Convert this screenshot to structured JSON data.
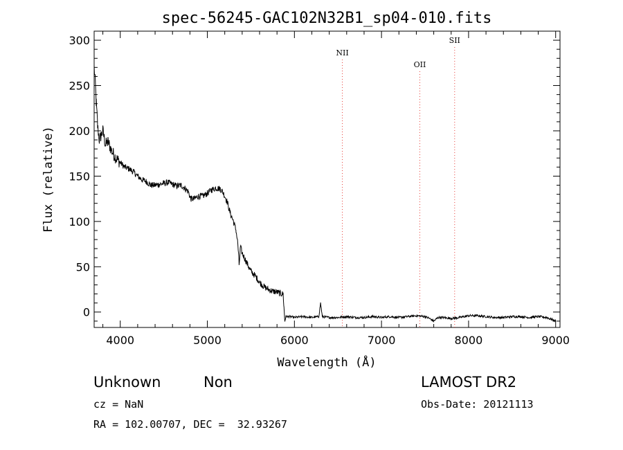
{
  "chart_data": {
    "type": "line",
    "title": "spec-56245-GAC102N32B1_sp04-010.fits",
    "xlabel": "Wavelength (Å)",
    "ylabel": "Flux (relative)",
    "xlim": [
      3700,
      9050
    ],
    "ylim": [
      -17,
      310
    ],
    "xticks": [
      4000,
      5000,
      6000,
      7000,
      8000,
      9000
    ],
    "yticks": [
      0,
      50,
      100,
      150,
      200,
      250,
      300
    ],
    "grid": false,
    "line_color": "#000000",
    "marker_color": "#e8403a",
    "series": [
      {
        "points": [
          [
            3700,
            270
          ],
          [
            3712,
            255
          ],
          [
            3725,
            230
          ],
          [
            3740,
            205
          ],
          [
            3760,
            190
          ],
          [
            3780,
            195
          ],
          [
            3800,
            200
          ],
          [
            3830,
            185
          ],
          [
            3860,
            188
          ],
          [
            3900,
            178
          ],
          [
            3950,
            170
          ],
          [
            4000,
            165
          ],
          [
            4050,
            160
          ],
          [
            4100,
            158
          ],
          [
            4150,
            155
          ],
          [
            4200,
            150
          ],
          [
            4250,
            146
          ],
          [
            4300,
            144
          ],
          [
            4350,
            140
          ],
          [
            4400,
            140
          ],
          [
            4450,
            141
          ],
          [
            4500,
            142
          ],
          [
            4550,
            143
          ],
          [
            4600,
            141
          ],
          [
            4650,
            139
          ],
          [
            4700,
            140
          ],
          [
            4750,
            136
          ],
          [
            4780,
            133
          ],
          [
            4810,
            125
          ],
          [
            4850,
            125
          ],
          [
            4900,
            128
          ],
          [
            4950,
            128
          ],
          [
            5000,
            131
          ],
          [
            5050,
            135
          ],
          [
            5100,
            137
          ],
          [
            5150,
            136
          ],
          [
            5180,
            132
          ],
          [
            5200,
            128
          ],
          [
            5230,
            121
          ],
          [
            5260,
            110
          ],
          [
            5300,
            100
          ],
          [
            5330,
            90
          ],
          [
            5350,
            75
          ],
          [
            5365,
            52
          ],
          [
            5380,
            72
          ],
          [
            5400,
            65
          ],
          [
            5450,
            55
          ],
          [
            5500,
            45
          ],
          [
            5550,
            40
          ],
          [
            5600,
            33
          ],
          [
            5650,
            28
          ],
          [
            5700,
            25
          ],
          [
            5750,
            23
          ],
          [
            5800,
            22
          ],
          [
            5850,
            20
          ],
          [
            5870,
            20
          ],
          [
            5880,
            5
          ],
          [
            5890,
            -10
          ],
          [
            5900,
            -5
          ],
          [
            5950,
            -5
          ],
          [
            6000,
            -6
          ],
          [
            6100,
            -5
          ],
          [
            6200,
            -6
          ],
          [
            6280,
            -5
          ],
          [
            6300,
            10
          ],
          [
            6320,
            -5
          ],
          [
            6400,
            -6
          ],
          [
            6500,
            -6
          ],
          [
            6600,
            -5
          ],
          [
            6700,
            -6
          ],
          [
            6800,
            -6
          ],
          [
            6900,
            -5
          ],
          [
            7000,
            -6
          ],
          [
            7100,
            -5
          ],
          [
            7200,
            -6
          ],
          [
            7300,
            -5
          ],
          [
            7400,
            -4
          ],
          [
            7500,
            -5
          ],
          [
            7550,
            -7
          ],
          [
            7600,
            -10
          ],
          [
            7650,
            -6
          ],
          [
            7700,
            -6
          ],
          [
            7800,
            -7
          ],
          [
            7900,
            -6
          ],
          [
            8000,
            -4
          ],
          [
            8100,
            -4
          ],
          [
            8200,
            -5
          ],
          [
            8300,
            -6
          ],
          [
            8400,
            -6
          ],
          [
            8500,
            -5
          ],
          [
            8600,
            -5
          ],
          [
            8700,
            -6
          ],
          [
            8800,
            -5
          ],
          [
            8900,
            -6
          ],
          [
            8950,
            -8
          ],
          [
            9000,
            -10
          ]
        ]
      }
    ],
    "lines": [
      {
        "label": "NII",
        "x": 6550
      },
      {
        "label": "OII",
        "x": 7440
      },
      {
        "label": "SII",
        "x": 7840
      }
    ]
  },
  "footer": {
    "classification": "Unknown",
    "subclass": "Non",
    "survey": "LAMOST DR2",
    "redshift": "cz = NaN",
    "obs_date": "Obs-Date: 20121113",
    "coords": "RA = 102.00707, DEC =  32.93267"
  }
}
